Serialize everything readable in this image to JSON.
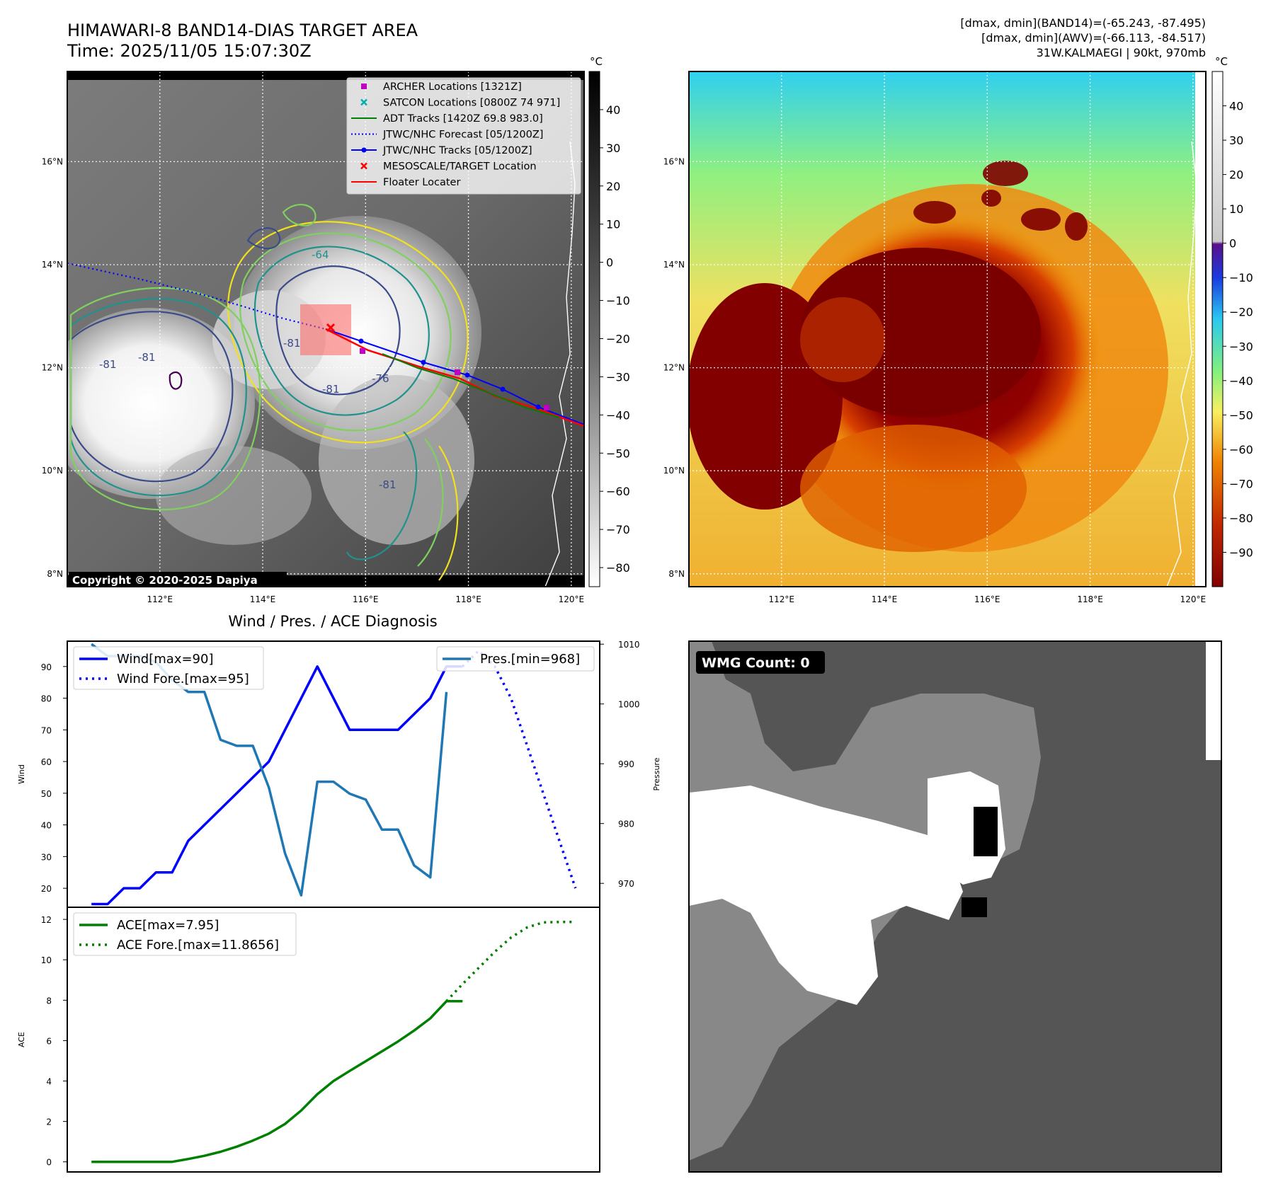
{
  "header": {
    "title_line1": "HIMAWARI-8 BAND14-DIAS TARGET AREA",
    "title_line2": "Time: 2025/11/05 15:07:30Z",
    "info_line1": "[dmax, dmin](BAND14)=(-65.243, -87.495)",
    "info_line2": "[dmax, dmin](AWV)=(-66.113, -84.517)",
    "info_line3": "31W.KALMAEGI | 90kt, 970mb"
  },
  "map_axes": {
    "lat_labels": [
      "16°N",
      "14°N",
      "12°N",
      "10°N",
      "8°N"
    ],
    "lat_values": [
      16,
      14,
      12,
      10,
      8
    ],
    "lon_labels": [
      "112°E",
      "114°E",
      "116°E",
      "118°E",
      "120°E"
    ],
    "lon_values": [
      112,
      114,
      116,
      118,
      120
    ],
    "lon_range": [
      110.2,
      120.25
    ],
    "lat_range": [
      7.75,
      17.75
    ]
  },
  "colorbar_gray": {
    "unit": "°C",
    "ticks": [
      "40",
      "30",
      "20",
      "10",
      "0",
      "−10",
      "−20",
      "−30",
      "−40",
      "−50",
      "−60",
      "−70",
      "−80"
    ],
    "tick_values": [
      40,
      30,
      20,
      10,
      0,
      -10,
      -20,
      -30,
      -40,
      -50,
      -60,
      -70,
      -80
    ],
    "range": [
      -85,
      50
    ]
  },
  "colorbar_color": {
    "unit": "°C",
    "ticks": [
      "40",
      "30",
      "20",
      "10",
      "0",
      "−10",
      "−20",
      "−30",
      "−40",
      "−50",
      "−60",
      "−70",
      "−80",
      "−90"
    ],
    "tick_values": [
      40,
      30,
      20,
      10,
      0,
      -10,
      -20,
      -30,
      -40,
      -50,
      -60,
      -70,
      -80,
      -90
    ],
    "range": [
      -100,
      50
    ]
  },
  "legend": [
    {
      "label": "ARCHER Locations [1321Z]",
      "marker": "square",
      "color": "#c000c0"
    },
    {
      "label": "SATCON Locations [0800Z 74 971]",
      "marker": "x",
      "color": "#00b0b0"
    },
    {
      "label": "ADT Tracks [1420Z 69.8 983.0]",
      "marker": "line",
      "color": "#008000"
    },
    {
      "label": "JTWC/NHC Forecast [05/1200Z]",
      "marker": "dotted",
      "color": "#0000ff"
    },
    {
      "label": "JTWC/NHC Tracks [05/1200Z]",
      "marker": "line-dot",
      "color": "#0000ff"
    },
    {
      "label": "MESOSCALE/TARGET Location",
      "marker": "x",
      "color": "#ff0000"
    },
    {
      "label": "Floater Locater",
      "marker": "line",
      "color": "#ff0000"
    }
  ],
  "contour_labels": [
    "-64",
    "-76",
    "-81",
    "-81",
    "-81",
    "-81",
    "-81"
  ],
  "copyright": "Copyright © 2020-2025 Dapiya",
  "wmg": {
    "label": "WMG Count: 0"
  },
  "chart_data": [
    {
      "type": "line",
      "title": "Wind / Pres. / ACE Diagnosis",
      "ylabel": "Wind",
      "y2label": "Pressure",
      "ylim": [
        14,
        98
      ],
      "y2lim": [
        966,
        1010.5
      ],
      "yticks": [
        20,
        30,
        40,
        50,
        60,
        70,
        80,
        90
      ],
      "y2ticks": [
        970,
        980,
        990,
        1000,
        1010
      ],
      "xlim": [
        -1.5,
        31.5
      ],
      "series": [
        {
          "name": "Wind[max=90]",
          "axis": "left",
          "style": "solid",
          "color": "#0000ff",
          "x": [
            0,
            1,
            2,
            3,
            4,
            5,
            6,
            7,
            8,
            9,
            10,
            11,
            12,
            13,
            14,
            15,
            16,
            17,
            18,
            19,
            20,
            21,
            22,
            23
          ],
          "values": [
            15,
            15,
            20,
            20,
            25,
            25,
            35,
            40,
            45,
            50,
            55,
            60,
            70,
            80,
            90,
            80,
            70,
            70,
            70,
            70,
            75,
            80,
            90,
            90
          ]
        },
        {
          "name": "Wind Fore.[max=95]",
          "axis": "left",
          "style": "dotted",
          "color": "#0000ff",
          "x": [
            23,
            24,
            25,
            26,
            27,
            28,
            29,
            30
          ],
          "values": [
            90,
            95,
            90,
            80,
            65,
            50,
            35,
            20
          ]
        },
        {
          "name": "Pres.[min=968]",
          "axis": "right",
          "style": "solid",
          "color": "#1f77b4",
          "x": [
            0,
            1,
            2,
            3,
            4,
            5,
            6,
            7,
            8,
            9,
            10,
            11,
            12,
            13,
            14,
            15,
            16,
            17,
            18,
            19,
            20,
            21,
            22
          ],
          "values": [
            1010,
            1008,
            1008,
            1008,
            1007,
            1004,
            1002,
            1002,
            994,
            993,
            993,
            986,
            975,
            968,
            987,
            987,
            985,
            984,
            979,
            979,
            973,
            971,
            1002
          ]
        }
      ]
    },
    {
      "type": "line",
      "ylabel": "ACE",
      "ylim": [
        -0.5,
        12.6
      ],
      "yticks": [
        0,
        2,
        4,
        6,
        8,
        10,
        12
      ],
      "xlim": [
        -1.5,
        31.5
      ],
      "series": [
        {
          "name": "ACE[max=7.95]",
          "style": "solid",
          "color": "#008000",
          "x": [
            0,
            1,
            2,
            3,
            4,
            5,
            6,
            7,
            8,
            9,
            10,
            11,
            12,
            13,
            14,
            15,
            16,
            17,
            18,
            19,
            20,
            21,
            22,
            23
          ],
          "values": [
            0,
            0,
            0,
            0,
            0,
            0,
            0.14,
            0.3,
            0.5,
            0.75,
            1.05,
            1.4,
            1.88,
            2.54,
            3.35,
            4.0,
            4.5,
            4.98,
            5.47,
            5.96,
            6.5,
            7.1,
            7.95,
            7.95
          ]
        },
        {
          "name": "ACE Fore.[max=11.8656]",
          "style": "dotted",
          "color": "#008000",
          "x": [
            22,
            23,
            24,
            25,
            26,
            27,
            28,
            29,
            30
          ],
          "values": [
            7.95,
            8.8,
            9.6,
            10.4,
            11.1,
            11.6,
            11.85,
            11.87,
            11.87
          ]
        }
      ]
    }
  ]
}
